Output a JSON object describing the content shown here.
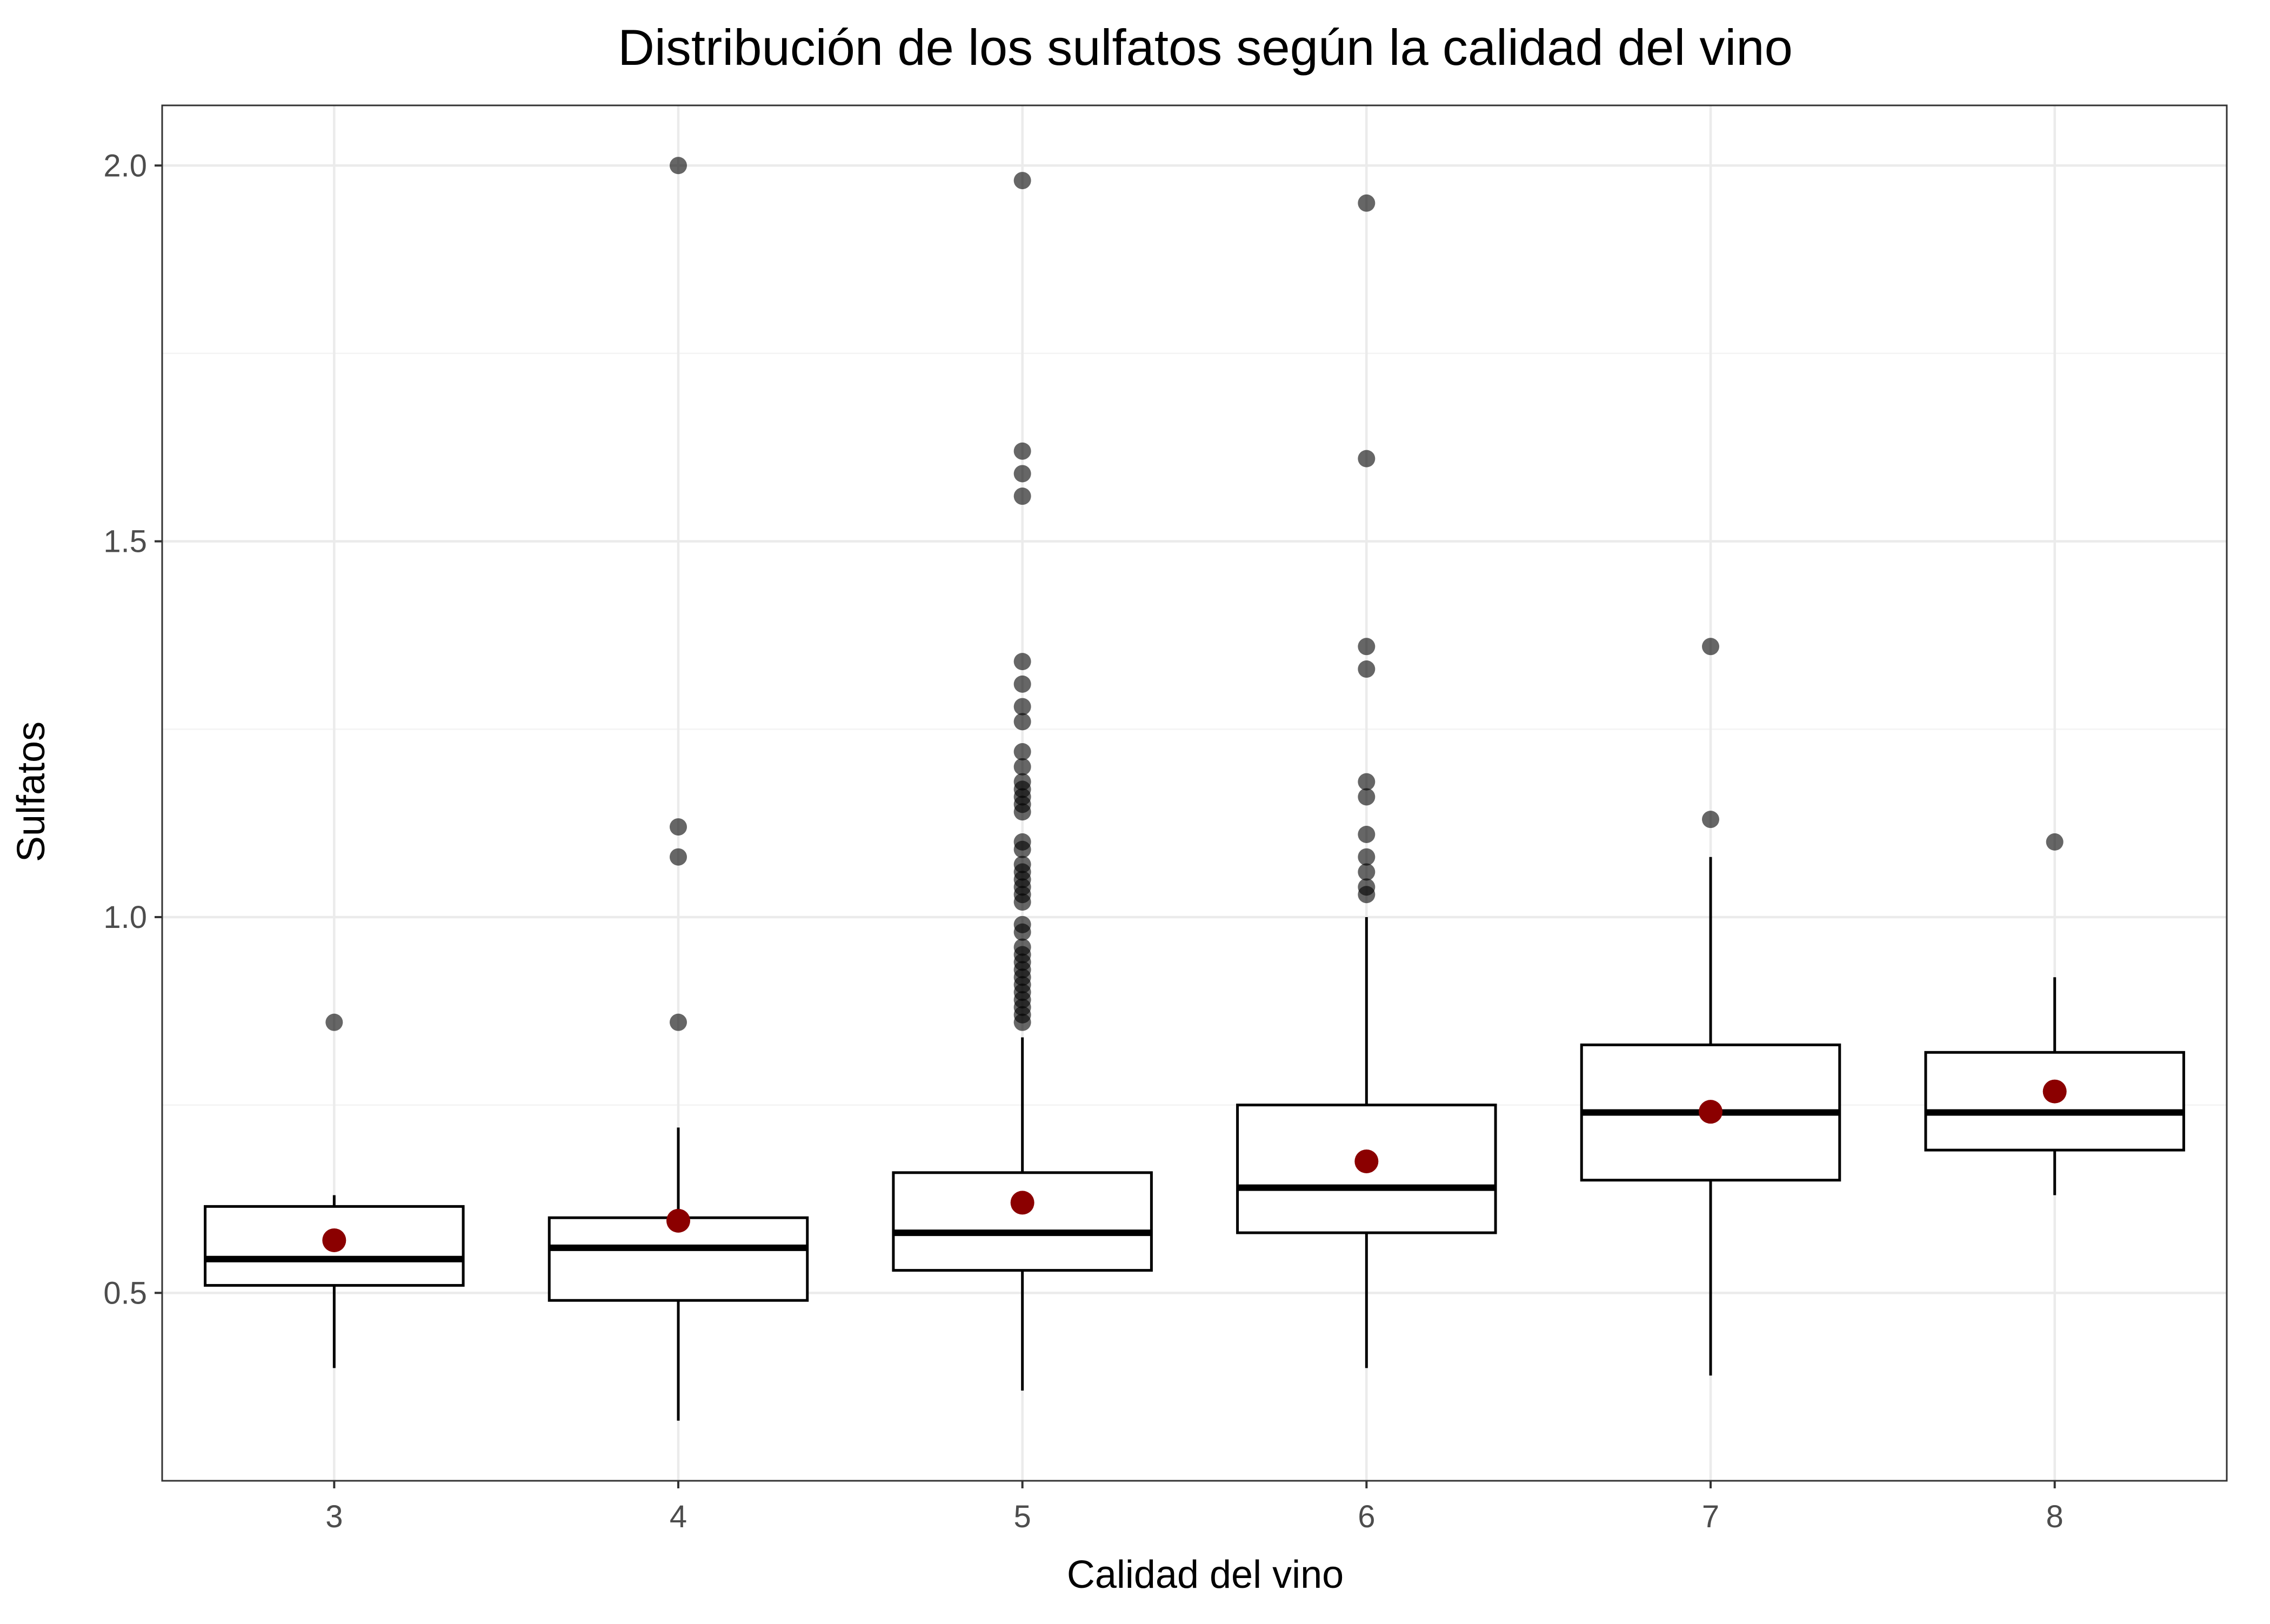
{
  "chart_data": {
    "type": "boxplot",
    "title": "Distribución de los sulfatos según la calidad del vino",
    "xlabel": "Calidad del vino",
    "ylabel": "Sulfatos",
    "categories": [
      "3",
      "4",
      "5",
      "6",
      "7",
      "8"
    ],
    "yticks": [
      "0.5",
      "1.0",
      "1.5",
      "2.0"
    ],
    "ylim": [
      0.25,
      2.08
    ],
    "grid": true,
    "colors": {
      "mean": "#8b0000",
      "outlier": "#000000",
      "box_stroke": "#000000",
      "box_fill": "#ffffff",
      "grid_major": "#ebebeb",
      "grid_minor": "#f3f3f3",
      "panel_border": "#333333"
    },
    "boxes": [
      {
        "category": "3",
        "whisker_low": 0.4,
        "q1": 0.51,
        "median": 0.545,
        "q3": 0.615,
        "whisker_high": 0.63,
        "mean": 0.57,
        "outliers": [
          0.86
        ]
      },
      {
        "category": "4",
        "whisker_low": 0.33,
        "q1": 0.49,
        "median": 0.56,
        "q3": 0.6,
        "whisker_high": 0.72,
        "mean": 0.596,
        "outliers": [
          0.86,
          1.08,
          1.12,
          2.0
        ]
      },
      {
        "category": "5",
        "whisker_low": 0.37,
        "q1": 0.53,
        "median": 0.58,
        "q3": 0.66,
        "whisker_high": 0.84,
        "mean": 0.62,
        "outliers": [
          0.86,
          0.87,
          0.88,
          0.89,
          0.9,
          0.91,
          0.92,
          0.93,
          0.94,
          0.95,
          0.96,
          0.98,
          0.99,
          1.02,
          1.03,
          1.04,
          1.05,
          1.06,
          1.07,
          1.09,
          1.1,
          1.14,
          1.15,
          1.16,
          1.17,
          1.18,
          1.2,
          1.22,
          1.26,
          1.28,
          1.31,
          1.34,
          1.56,
          1.59,
          1.62,
          1.98
        ]
      },
      {
        "category": "6",
        "whisker_low": 0.4,
        "q1": 0.58,
        "median": 0.64,
        "q3": 0.75,
        "whisker_high": 1.0,
        "mean": 0.675,
        "outliers": [
          1.03,
          1.04,
          1.06,
          1.08,
          1.11,
          1.16,
          1.18,
          1.33,
          1.36,
          1.61,
          1.95
        ]
      },
      {
        "category": "7",
        "whisker_low": 0.39,
        "q1": 0.65,
        "median": 0.74,
        "q3": 0.83,
        "whisker_high": 1.08,
        "mean": 0.741,
        "outliers": [
          1.13,
          1.36
        ]
      },
      {
        "category": "8",
        "whisker_low": 0.63,
        "q1": 0.69,
        "median": 0.74,
        "q3": 0.82,
        "whisker_high": 0.92,
        "mean": 0.768,
        "outliers": [
          1.1
        ]
      }
    ]
  }
}
